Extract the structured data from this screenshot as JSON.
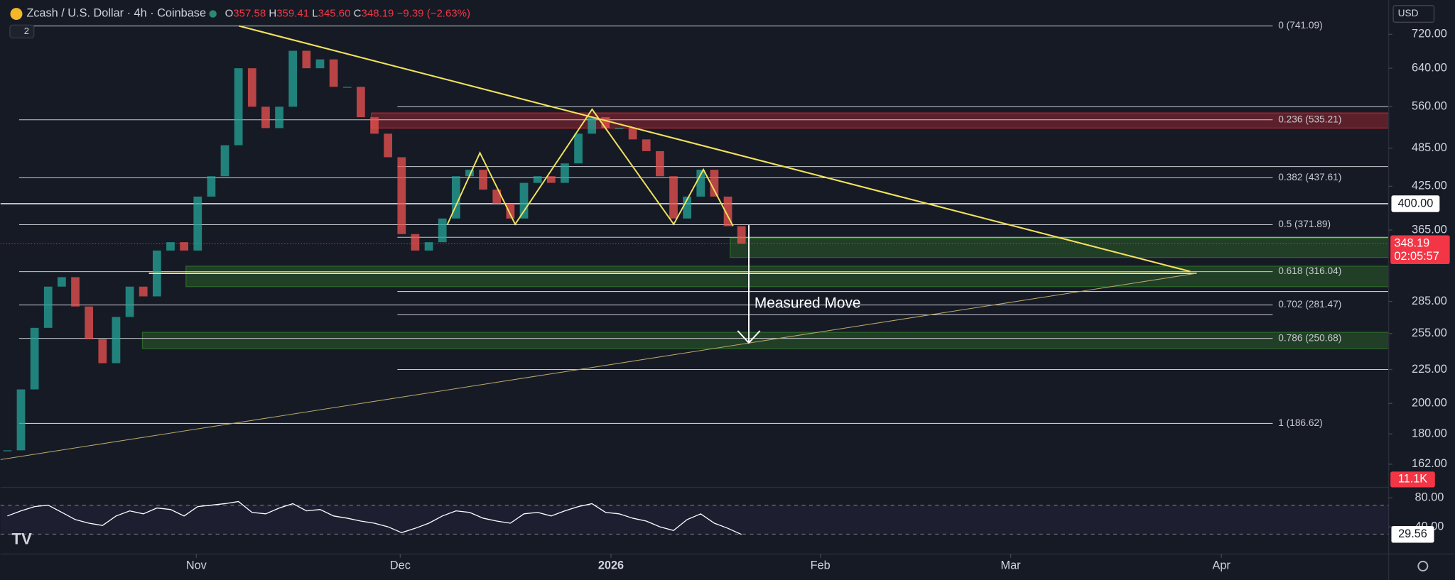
{
  "header": {
    "symbol": "Zcash / U.S. Dollar · 4h · Coinbase",
    "ohlc": [
      {
        "key": "O",
        "value": "357.58"
      },
      {
        "key": "H",
        "value": "359.41"
      },
      {
        "key": "L",
        "value": "345.60"
      },
      {
        "key": "C",
        "value": "348.19"
      }
    ],
    "change": "−9.39 (−2.63%)",
    "indicator_count": "2",
    "currency": "USD"
  },
  "chart_data": {
    "type": "candlestick",
    "categories": [
      null,
      null,
      null,
      null,
      null,
      null,
      null,
      null,
      null,
      null,
      null,
      null,
      null,
      null,
      null,
      null,
      null,
      null,
      null,
      null,
      null,
      null,
      null,
      null,
      null,
      null,
      null,
      null,
      null,
      null,
      null,
      null,
      null,
      null,
      null,
      null,
      null,
      null,
      null,
      null,
      null,
      null,
      null,
      null,
      null,
      null,
      null,
      null,
      null,
      null,
      null,
      null,
      null,
      null,
      null
    ],
    "values": [
      170,
      210,
      260,
      300,
      310,
      280,
      250,
      230,
      270,
      300,
      290,
      340,
      350,
      340,
      410,
      440,
      490,
      640,
      560,
      520,
      560,
      680,
      640,
      660,
      600,
      600,
      540,
      510,
      470,
      360,
      340,
      350,
      380,
      440,
      450,
      420,
      400,
      380,
      430,
      440,
      430,
      460,
      510,
      540,
      520,
      520,
      500,
      480,
      440,
      380,
      410,
      450,
      410,
      370,
      348.19
    ],
    "color_up": "#26a69a",
    "color_down": "#ef5350",
    "log_scale": true,
    "ylim": [
      149.5,
      811
    ],
    "yticks": [
      {
        "value": 720,
        "label": "720.00"
      },
      {
        "value": 640,
        "label": "640.00"
      },
      {
        "value": 560,
        "label": "560.00"
      },
      {
        "value": 485,
        "label": "485.00"
      },
      {
        "value": 425,
        "label": "425.00"
      },
      {
        "value": 365,
        "label": "365.00"
      },
      {
        "value": 285,
        "label": "285.00"
      },
      {
        "value": 255,
        "label": "255.00"
      },
      {
        "value": 225,
        "label": "225.00"
      },
      {
        "value": 200,
        "label": "200.00"
      },
      {
        "value": 180,
        "label": "180.00"
      },
      {
        "value": 162,
        "label": "162.00"
      }
    ],
    "xlim": [
      -0.5,
      101.6
    ],
    "xticks": [
      {
        "value": 13.9,
        "label": "Nov"
      },
      {
        "value": 28.9,
        "label": "Dec"
      },
      {
        "value": 44.4,
        "label": "2026"
      },
      {
        "value": 59.8,
        "label": "Feb"
      },
      {
        "value": 73.8,
        "label": "Mar"
      },
      {
        "value": 89.3,
        "label": "Apr"
      }
    ],
    "last_price": {
      "value": 348.19,
      "label": "348.19"
    },
    "countdown": "02:05:57",
    "marked_price": {
      "value": 400,
      "label": "400.00"
    },
    "volume_label": "11.1K",
    "fib_levels": [
      {
        "value": 741.09,
        "label": "0 (741.09)"
      },
      {
        "value": 535.21,
        "label": "0.236 (535.21)"
      },
      {
        "value": 437.61,
        "label": "0.382 (437.61)"
      },
      {
        "value": 371.89,
        "label": "0.5 (371.89)"
      },
      {
        "value": 316.04,
        "label": "0.618 (316.04)"
      },
      {
        "value": 281.47,
        "label": "0.702 (281.47)"
      },
      {
        "value": 250.68,
        "label": "0.786 (250.68)"
      },
      {
        "value": 186.62,
        "label": "1 (186.62)"
      }
    ],
    "levels": [
      560,
      455,
      356,
      295,
      272,
      225
    ],
    "zones": [
      {
        "low": 520,
        "high": 548,
        "color": "#b22833"
      },
      {
        "low": 332,
        "high": 355,
        "color": "#2e6b2a"
      },
      {
        "low": 300,
        "high": 322,
        "color": "#2e6b2a"
      },
      {
        "low": 242,
        "high": 256,
        "color": "#2e6b2a"
      }
    ],
    "annotation": "Measured Move",
    "rsi": {
      "values": [
        55,
        62,
        68,
        70,
        60,
        50,
        45,
        42,
        55,
        62,
        58,
        66,
        64,
        55,
        68,
        70,
        72,
        75,
        60,
        58,
        66,
        72,
        62,
        64,
        55,
        52,
        48,
        45,
        40,
        32,
        38,
        45,
        55,
        62,
        60,
        52,
        48,
        45,
        58,
        60,
        55,
        62,
        68,
        72,
        60,
        58,
        52,
        48,
        40,
        35,
        50,
        58,
        45,
        38,
        29.56
      ],
      "ylim": [
        5,
        92
      ],
      "band": [
        30,
        70
      ],
      "yticks": [
        {
          "value": 80,
          "label": "80.00"
        },
        {
          "value": 40,
          "label": "40.00"
        }
      ],
      "last": {
        "value": 29.56,
        "label": "29.56"
      }
    }
  }
}
